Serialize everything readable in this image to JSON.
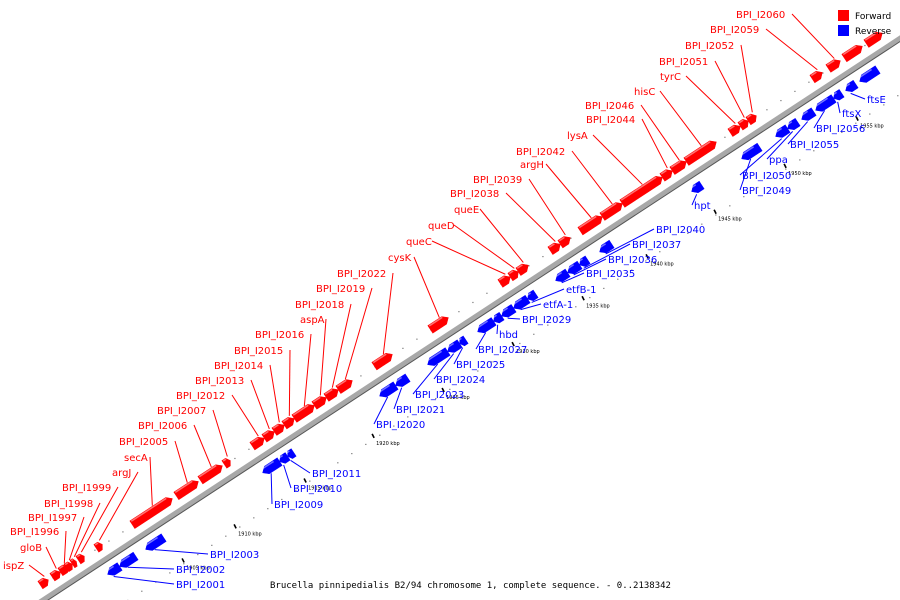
{
  "caption": "Brucella pinnipedialis B2/94 chromosome 1, complete sequence. - 0..2138342",
  "colors": {
    "forward": "#ff0000",
    "reverse": "#0000ff",
    "backbone": "#aaaaaa"
  },
  "legend": [
    {
      "label": "Forward",
      "color": "#ff0000"
    },
    {
      "label": "Reverse",
      "color": "#0000ff"
    }
  ],
  "ticks": [
    "1905 kbp",
    "1910 kbp",
    "1915 kbp",
    "1920 kbp",
    "1925 kbp",
    "1930 kbp",
    "1935 kbp",
    "1940 kbp",
    "1945 kbp",
    "1950 kbp",
    "1955 kbp"
  ],
  "forward_labels": [
    "ispZ",
    "gloB",
    "BPI_I1996",
    "BPI_I1997",
    "BPI_I1998",
    "BPI_I1999",
    "argJ",
    "secA",
    "BPI_I2005",
    "BPI_I2006",
    "BPI_I2007",
    "BPI_I2012",
    "BPI_I2013",
    "BPI_I2014",
    "BPI_I2015",
    "BPI_I2016",
    "aspA",
    "BPI_I2018",
    "BPI_I2019",
    "BPI_I2022",
    "cysK",
    "queC",
    "queD",
    "queE",
    "BPI_I2038",
    "BPI_I2039",
    "argH",
    "BPI_I2042",
    "lysA",
    "BPI_I2044",
    "BPI_I2046",
    "hisC",
    "tyrC",
    "BPI_I2051",
    "BPI_I2052",
    "BPI_I2059",
    "BPI_I2060"
  ],
  "reverse_labels": [
    "BPI_I2001",
    "BPI_I2002",
    "BPI_I2003",
    "BPI_I2009",
    "BPI_I2010",
    "BPI_I2011",
    "BPI_I2020",
    "BPI_I2021",
    "BPI_I2023",
    "BPI_I2024",
    "BPI_I2025",
    "BPI_I2027",
    "hbd",
    "BPI_I2029",
    "etfA-1",
    "etfB-1",
    "BPI_I2035",
    "BPI_I2036",
    "BPI_I2037",
    "BPI_I2040",
    "hpt",
    "BPI_I2049",
    "BPI_I2050",
    "ppa",
    "BPI_I2055",
    "BPI_I2056",
    "ftsX",
    "ftsE"
  ]
}
